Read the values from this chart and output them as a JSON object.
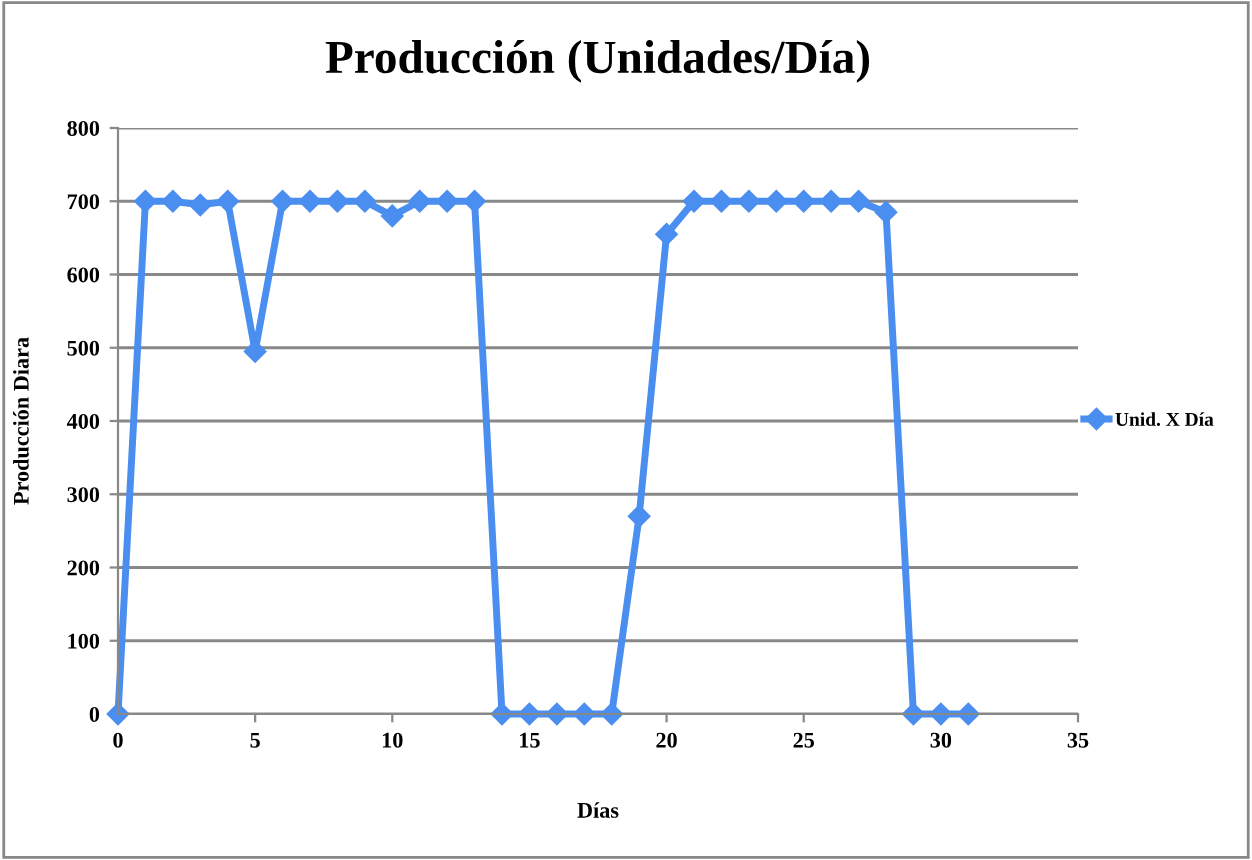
{
  "chart_data": {
    "type": "line",
    "title": "Producción (Unidades/Día)",
    "xlabel": "Días",
    "ylabel": "Producción Diara",
    "series": [
      {
        "name": "Unid. X Día",
        "color": "#4a8ef0",
        "x": [
          0,
          1,
          2,
          3,
          4,
          5,
          6,
          7,
          8,
          9,
          10,
          11,
          12,
          13,
          14,
          15,
          16,
          17,
          18,
          19,
          20,
          21,
          22,
          23,
          24,
          25,
          26,
          27,
          28,
          29,
          30,
          31
        ],
        "values": [
          0,
          700,
          700,
          695,
          700,
          495,
          700,
          700,
          700,
          700,
          680,
          700,
          700,
          700,
          0,
          0,
          0,
          0,
          0,
          270,
          655,
          700,
          700,
          700,
          700,
          700,
          700,
          700,
          685,
          0,
          0,
          0
        ]
      }
    ],
    "xlim": [
      0,
      35
    ],
    "xticks": [
      0,
      5,
      10,
      15,
      20,
      25,
      30,
      35
    ],
    "ylim": [
      0,
      800
    ],
    "yticks": [
      0,
      100,
      200,
      300,
      400,
      500,
      600,
      700,
      800
    ],
    "grid": "y",
    "legend": "right",
    "marker": "diamond",
    "line_style": "solid"
  }
}
